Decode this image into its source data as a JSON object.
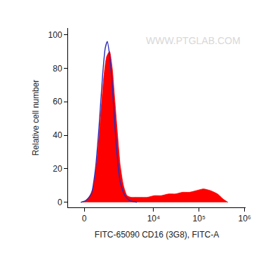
{
  "chart_data": {
    "type": "line",
    "x_label": "FITC-65090 CD16 (3G8), FITC-A",
    "y_label": "Relative cell number",
    "annotations": [
      {
        "text": "WWW.PTGLAB.COM"
      }
    ],
    "xlim": [
      -550,
      1050000
    ],
    "xticks": [
      0,
      {
        "value": 10000,
        "label": "10⁴"
      },
      {
        "value": 100000,
        "label": "10⁵"
      },
      {
        "value": 1000000,
        "label": "10⁶"
      }
    ],
    "ylim": [
      -3,
      104
    ],
    "yticks": [
      0,
      20,
      40,
      60,
      80,
      100
    ],
    "grid": false,
    "series": [
      {
        "type": "area",
        "color": "#ff0000",
        "x": [
          -42,
          108,
          266,
          410,
          547,
          697,
          834,
          994,
          1161,
          1350,
          1561,
          1799,
          2136,
          2577,
          3179,
          4160,
          7260,
          10440,
          14820,
          21240,
          30120,
          42780,
          61200,
          87000,
          124800,
          177000,
          253800,
          336000,
          431400
        ],
        "values": [
          0,
          2,
          8,
          25,
          50,
          75,
          87,
          90,
          80,
          60,
          40,
          22,
          10,
          4,
          3,
          3,
          3,
          4,
          4,
          5,
          5,
          6,
          6,
          7,
          8,
          7,
          5,
          2,
          0
        ]
      },
      {
        "type": "line",
        "color": "#2b2bb8",
        "x": [
          -108,
          42,
          218,
          358,
          490,
          635,
          762,
          868,
          994,
          1161,
          1350,
          1561,
          1799,
          2296,
          2980,
          4300
        ],
        "values": [
          0,
          1,
          5,
          20,
          45,
          75,
          92,
          96,
          88,
          70,
          45,
          25,
          12,
          4,
          1,
          0
        ]
      }
    ]
  }
}
